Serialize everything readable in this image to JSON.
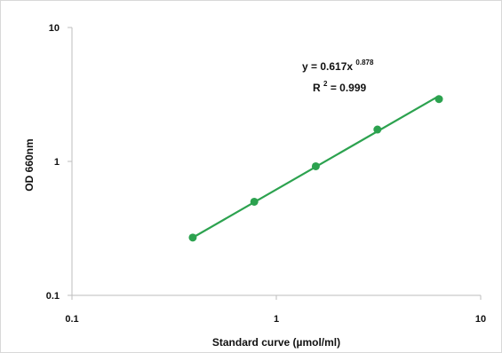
{
  "chart_data": {
    "type": "scatter",
    "xlabel": "Standard curve (µmol/ml)",
    "ylabel": "OD 660nm",
    "xscale": "log",
    "yscale": "log",
    "xlim": [
      0.1,
      10
    ],
    "ylim": [
      0.1,
      10
    ],
    "x_ticks": [
      "0.1",
      "1",
      "10"
    ],
    "y_ticks": [
      "0.1",
      "1",
      "10"
    ],
    "grid": false,
    "color": "#2ca24f",
    "series": [
      {
        "x": [
          0.39,
          0.78,
          1.56,
          3.125,
          6.25
        ],
        "y": [
          0.27,
          0.5,
          0.92,
          1.73,
          2.92
        ]
      }
    ],
    "fit": {
      "type": "power",
      "a": 0.617,
      "b": 0.878
    },
    "annotations": {
      "equation_prefix": "y = 0.617x",
      "equation_exponent": "0.878",
      "r2_prefix": "R",
      "r2_exponent": "2",
      "r2_suffix": " = 0.999"
    }
  }
}
